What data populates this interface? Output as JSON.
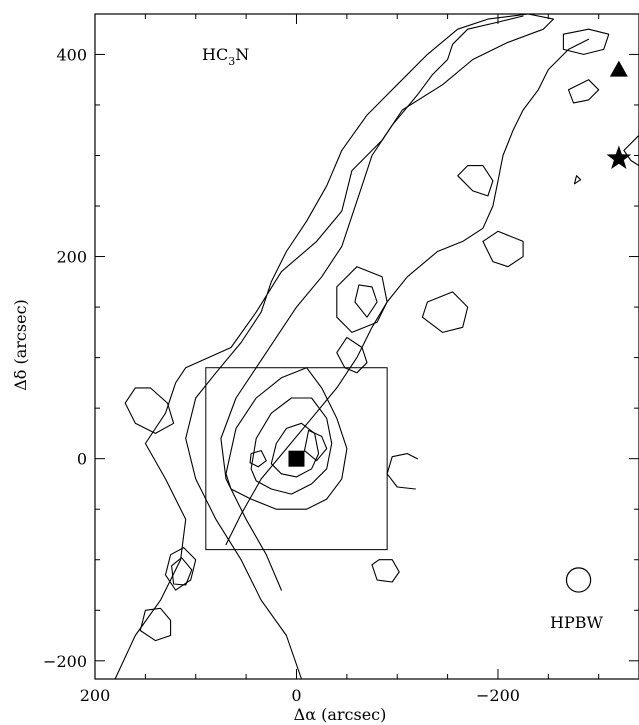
{
  "chart_data": {
    "type": "contour",
    "xlabel": "Δα (arcsec)",
    "ylabel": "Δδ (arcsec)",
    "xlim": [
      200,
      -340
    ],
    "ylim": [
      -218,
      440
    ],
    "x_ticks": [
      200,
      0,
      -200
    ],
    "x_tick_labels": [
      "200",
      "0",
      "−200"
    ],
    "y_ticks": [
      400,
      200,
      0,
      -200
    ],
    "y_tick_labels": [
      "400",
      "200",
      "0",
      "−200"
    ],
    "molecule_label_main": "HC",
    "molecule_label_sub": "3",
    "molecule_label_end": "N",
    "beam_label": "HPBW",
    "beam_diameter_arcsec": 24,
    "beam_center": [
      -280,
      -120
    ],
    "box": {
      "x_min": -90,
      "x_max": 90,
      "y_min": -90,
      "y_max": 90
    },
    "markers": [
      {
        "shape": "square",
        "x": 0,
        "y": 0
      },
      {
        "shape": "triangle",
        "x": -320,
        "y": 385
      },
      {
        "shape": "star",
        "x": -320,
        "y": 297
      }
    ],
    "contours": [
      {
        "level": 1,
        "closed": true,
        "points": [
          [
            180,
            -218
          ],
          [
            160,
            -175
          ],
          [
            135,
            -140
          ],
          [
            115,
            -100
          ],
          [
            110,
            -60
          ],
          [
            130,
            -20
          ],
          [
            150,
            15
          ],
          [
            130,
            45
          ],
          [
            120,
            75
          ],
          [
            110,
            90
          ],
          [
            65,
            110
          ],
          [
            40,
            145
          ],
          [
            15,
            185
          ],
          [
            -20,
            215
          ],
          [
            -45,
            245
          ],
          [
            -55,
            285
          ],
          [
            -85,
            315
          ],
          [
            -105,
            345
          ],
          [
            -145,
            370
          ],
          [
            -175,
            395
          ],
          [
            -210,
            412
          ],
          [
            -245,
            425
          ],
          [
            -255,
            435
          ],
          [
            -230,
            440
          ],
          [
            -190,
            435
          ],
          [
            -160,
            425
          ],
          [
            -130,
            400
          ],
          [
            -100,
            370
          ],
          [
            -70,
            340
          ],
          [
            -45,
            305
          ],
          [
            -30,
            270
          ],
          [
            -10,
            235
          ],
          [
            10,
            205
          ],
          [
            25,
            175
          ],
          [
            35,
            145
          ],
          [
            55,
            115
          ],
          [
            80,
            85
          ],
          [
            100,
            60
          ],
          [
            110,
            20
          ],
          [
            100,
            -20
          ],
          [
            80,
            -60
          ],
          [
            55,
            -100
          ],
          [
            35,
            -140
          ],
          [
            10,
            -175
          ],
          [
            -5,
            -218
          ]
        ]
      },
      {
        "level": 2,
        "closed": false,
        "points": [
          [
            -225,
            438
          ],
          [
            -200,
            432
          ],
          [
            -170,
            425
          ],
          [
            -155,
            410
          ],
          [
            -150,
            395
          ],
          [
            -135,
            380
          ],
          [
            -120,
            360
          ],
          [
            -95,
            330
          ],
          [
            -75,
            300
          ],
          [
            -65,
            270
          ],
          [
            -55,
            240
          ],
          [
            -45,
            210
          ],
          [
            -25,
            180
          ],
          [
            0,
            150
          ],
          [
            20,
            120
          ],
          [
            40,
            90
          ],
          [
            60,
            60
          ],
          [
            75,
            20
          ],
          [
            70,
            -20
          ],
          [
            50,
            -60
          ],
          [
            30,
            -95
          ],
          [
            15,
            -130
          ]
        ]
      },
      {
        "level": 3,
        "closed": false,
        "points": [
          [
            -290,
            415
          ],
          [
            -270,
            405
          ],
          [
            -250,
            385
          ],
          [
            -240,
            365
          ],
          [
            -225,
            345
          ],
          [
            -215,
            325
          ],
          [
            -205,
            300
          ],
          [
            -200,
            275
          ],
          [
            -195,
            250
          ],
          [
            -185,
            228
          ],
          [
            -165,
            215
          ],
          [
            -140,
            205
          ],
          [
            -110,
            180
          ],
          [
            -90,
            155
          ],
          [
            -75,
            130
          ],
          [
            -60,
            100
          ],
          [
            -40,
            70
          ],
          [
            -15,
            40
          ],
          [
            10,
            10
          ],
          [
            35,
            -20
          ],
          [
            55,
            -55
          ],
          [
            70,
            -85
          ]
        ]
      },
      {
        "level": 4,
        "closed": true,
        "points": [
          [
            105,
            -120
          ],
          [
            100,
            -100
          ],
          [
            112,
            -88
          ],
          [
            125,
            -95
          ],
          [
            130,
            -115
          ],
          [
            120,
            -130
          ]
        ]
      },
      {
        "level": 4,
        "closed": true,
        "points": [
          [
            110,
            -125
          ],
          [
            104,
            -110
          ],
          [
            114,
            -98
          ],
          [
            124,
            -106
          ],
          [
            122,
            -124
          ]
        ]
      },
      {
        "level": 4,
        "closed": true,
        "points": [
          [
            145,
            70
          ],
          [
            128,
            55
          ],
          [
            122,
            35
          ],
          [
            140,
            25
          ],
          [
            160,
            35
          ],
          [
            170,
            55
          ],
          [
            160,
            70
          ]
        ]
      },
      {
        "level": 4,
        "closed": true,
        "points": [
          [
            125,
            -175
          ],
          [
            140,
            -180
          ],
          [
            155,
            -170
          ],
          [
            150,
            -150
          ],
          [
            135,
            -148
          ],
          [
            125,
            -160
          ]
        ]
      },
      {
        "level": 5,
        "closed": true,
        "points": [
          [
            70,
            -15
          ],
          [
            60,
            30
          ],
          [
            40,
            60
          ],
          [
            15,
            80
          ],
          [
            -10,
            90
          ],
          [
            -25,
            70
          ],
          [
            -40,
            40
          ],
          [
            -50,
            10
          ],
          [
            -45,
            -20
          ],
          [
            -30,
            -40
          ],
          [
            -10,
            -50
          ],
          [
            20,
            -50
          ],
          [
            45,
            -40
          ],
          [
            65,
            -30
          ]
        ]
      },
      {
        "level": 6,
        "closed": true,
        "points": [
          [
            45,
            -10
          ],
          [
            40,
            20
          ],
          [
            25,
            45
          ],
          [
            5,
            60
          ],
          [
            -15,
            60
          ],
          [
            -30,
            40
          ],
          [
            -35,
            15
          ],
          [
            -30,
            -10
          ],
          [
            -15,
            -25
          ],
          [
            5,
            -35
          ],
          [
            25,
            -30
          ],
          [
            40,
            -22
          ]
        ]
      },
      {
        "level": 7,
        "closed": true,
        "points": [
          [
            25,
            -5
          ],
          [
            20,
            15
          ],
          [
            10,
            30
          ],
          [
            -5,
            35
          ],
          [
            -18,
            25
          ],
          [
            -22,
            5
          ],
          [
            -15,
            -10
          ],
          [
            0,
            -18
          ],
          [
            15,
            -15
          ]
        ]
      },
      {
        "level": 8,
        "closed": true,
        "points": [
          [
            38,
            -8
          ],
          [
            30,
            -2
          ],
          [
            35,
            8
          ],
          [
            45,
            5
          ],
          [
            46,
            -4
          ]
        ]
      },
      {
        "level": 8,
        "closed": true,
        "points": [
          [
            -12,
            28
          ],
          [
            -25,
            22
          ],
          [
            -30,
            10
          ],
          [
            -20,
            -2
          ],
          [
            -8,
            8
          ]
        ]
      },
      {
        "level": 5,
        "closed": true,
        "points": [
          [
            -40,
            105
          ],
          [
            -50,
            120
          ],
          [
            -65,
            110
          ],
          [
            -70,
            95
          ],
          [
            -60,
            85
          ],
          [
            -48,
            90
          ]
        ]
      },
      {
        "level": 5,
        "closed": true,
        "points": [
          [
            -55,
            125
          ],
          [
            -40,
            140
          ],
          [
            -40,
            170
          ],
          [
            -60,
            190
          ],
          [
            -85,
            180
          ],
          [
            -90,
            155
          ],
          [
            -80,
            135
          ]
        ]
      },
      {
        "level": 6,
        "closed": true,
        "points": [
          [
            -70,
            140
          ],
          [
            -80,
            155
          ],
          [
            -75,
            170
          ],
          [
            -62,
            172
          ],
          [
            -58,
            155
          ]
        ]
      },
      {
        "level": 5,
        "closed": true,
        "points": [
          [
            -160,
            280
          ],
          [
            -175,
            265
          ],
          [
            -190,
            260
          ],
          [
            -195,
            275
          ],
          [
            -185,
            290
          ],
          [
            -170,
            290
          ]
        ]
      },
      {
        "level": 5,
        "closed": true,
        "points": [
          [
            -185,
            215
          ],
          [
            -200,
            225
          ],
          [
            -225,
            215
          ],
          [
            -225,
            200
          ],
          [
            -210,
            190
          ],
          [
            -195,
            195
          ]
        ]
      },
      {
        "level": 5,
        "closed": true,
        "points": [
          [
            -130,
            155
          ],
          [
            -155,
            165
          ],
          [
            -170,
            150
          ],
          [
            -165,
            130
          ],
          [
            -145,
            125
          ],
          [
            -125,
            140
          ]
        ]
      },
      {
        "level": 5,
        "closed": true,
        "points": [
          [
            -265,
            420
          ],
          [
            -290,
            425
          ],
          [
            -310,
            420
          ],
          [
            -305,
            405
          ],
          [
            -285,
            400
          ],
          [
            -265,
            405
          ]
        ]
      },
      {
        "level": 6,
        "closed": true,
        "points": [
          [
            -270,
            365
          ],
          [
            -290,
            375
          ],
          [
            -300,
            365
          ],
          [
            -290,
            355
          ],
          [
            -275,
            352
          ]
        ]
      },
      {
        "level": 4,
        "closed": true,
        "points": [
          [
            -325,
            305
          ],
          [
            -340,
            320
          ],
          [
            -340,
            290
          ],
          [
            -332,
            295
          ]
        ]
      },
      {
        "level": 4,
        "closed": true,
        "points": [
          [
            -278,
            280
          ],
          [
            -282,
            276
          ],
          [
            -276,
            272
          ]
        ]
      },
      {
        "level": 4,
        "closed": false,
        "points": [
          [
            -120,
            0
          ],
          [
            -110,
            5
          ],
          [
            -95,
            2
          ],
          [
            -90,
            -15
          ],
          [
            -100,
            -28
          ],
          [
            -118,
            -30
          ]
        ]
      },
      {
        "level": 4,
        "closed": true,
        "points": [
          [
            -75,
            -105
          ],
          [
            -80,
            -120
          ],
          [
            -95,
            -122
          ],
          [
            -102,
            -112
          ],
          [
            -95,
            -100
          ],
          [
            -82,
            -100
          ]
        ]
      }
    ]
  }
}
